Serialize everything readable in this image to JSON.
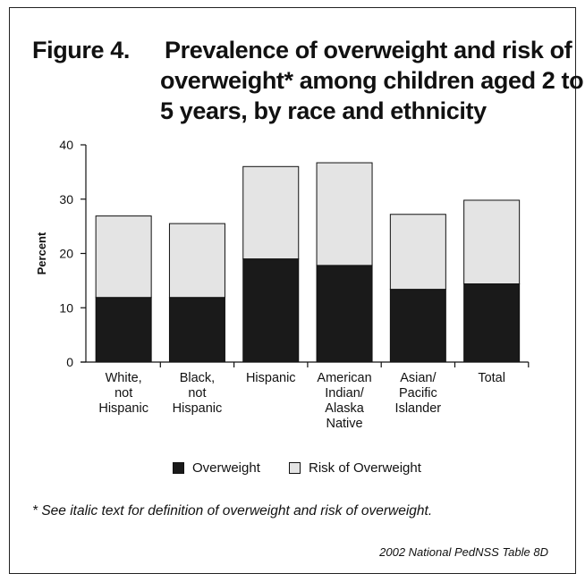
{
  "title": {
    "prefix": "Figure 4.",
    "line1": "Prevalence of overweight and risk of",
    "line2": "overweight* among children aged 2 to",
    "line3": "5 years, by race and ethnicity"
  },
  "footnote": "*  See italic text for definition of overweight and risk of overweight.",
  "source": "2002 National PedNSS Table 8D",
  "legend": {
    "items": [
      {
        "label": "Overweight",
        "color": "#1a1a1a"
      },
      {
        "label": "Risk of Overweight",
        "color": "#e4e4e4"
      }
    ]
  },
  "chart_data": {
    "type": "bar",
    "stacked": true,
    "categories": [
      [
        "White,",
        "not",
        "Hispanic"
      ],
      [
        "Black,",
        "not",
        "Hispanic"
      ],
      [
        "Hispanic"
      ],
      [
        "American",
        "Indian/",
        "Alaska",
        "Native"
      ],
      [
        "Asian/",
        "Pacific",
        "Islander"
      ],
      [
        "Total"
      ]
    ],
    "series": [
      {
        "name": "Overweight",
        "color": "#1a1a1a",
        "values": [
          11.9,
          11.9,
          19.0,
          17.8,
          13.4,
          14.4
        ]
      },
      {
        "name": "Risk of Overweight",
        "color": "#e4e4e4",
        "values": [
          15.0,
          13.6,
          17.0,
          18.9,
          13.8,
          15.4
        ]
      }
    ],
    "totals": [
      26.9,
      25.5,
      36.0,
      36.7,
      27.2,
      29.8
    ],
    "ylabel": "Percent",
    "xlabel": "",
    "ylim": [
      0,
      40
    ],
    "yticks": [
      0,
      10,
      20,
      30,
      40
    ],
    "grid": false,
    "legend_position": "bottom"
  }
}
